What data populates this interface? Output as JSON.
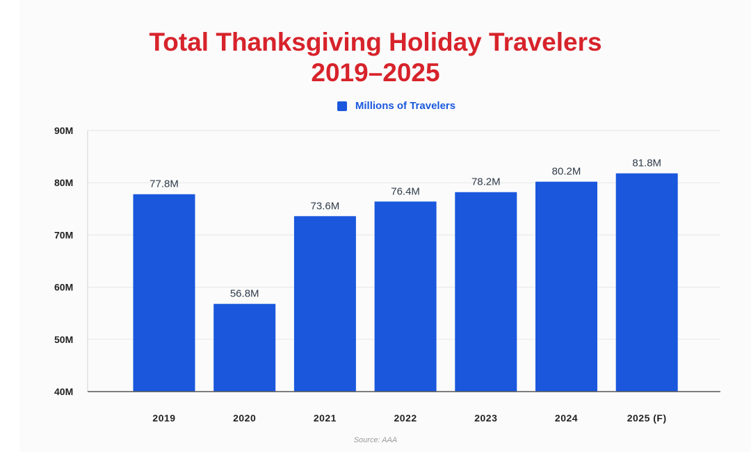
{
  "chart_data": {
    "type": "bar",
    "title_line1": "Total Thanksgiving Holiday Travelers",
    "title_line2": "2019–2025",
    "categories": [
      "2019",
      "2020",
      "2021",
      "2022",
      "2023",
      "2024",
      "2025 (F)"
    ],
    "series": [
      {
        "name": "Millions of Travelers",
        "values": [
          77.8,
          56.8,
          73.6,
          76.4,
          78.2,
          80.2,
          81.8
        ],
        "data_labels": [
          "77.8M",
          "56.8M",
          "73.6M",
          "76.4M",
          "78.2M",
          "80.2M",
          "81.8M"
        ],
        "color": "#1a57dd"
      }
    ],
    "ylim": [
      40,
      90
    ],
    "yticks": [
      40,
      50,
      60,
      70,
      80,
      90
    ],
    "ytick_labels": [
      "40M",
      "50M",
      "60M",
      "70M",
      "80M",
      "90M"
    ],
    "grid": true,
    "legend_position": "top-center",
    "source": "Source: AAA"
  },
  "colors": {
    "title": "#d7232b",
    "bar": "#1a57dd",
    "legend_text": "#1a57dd"
  }
}
